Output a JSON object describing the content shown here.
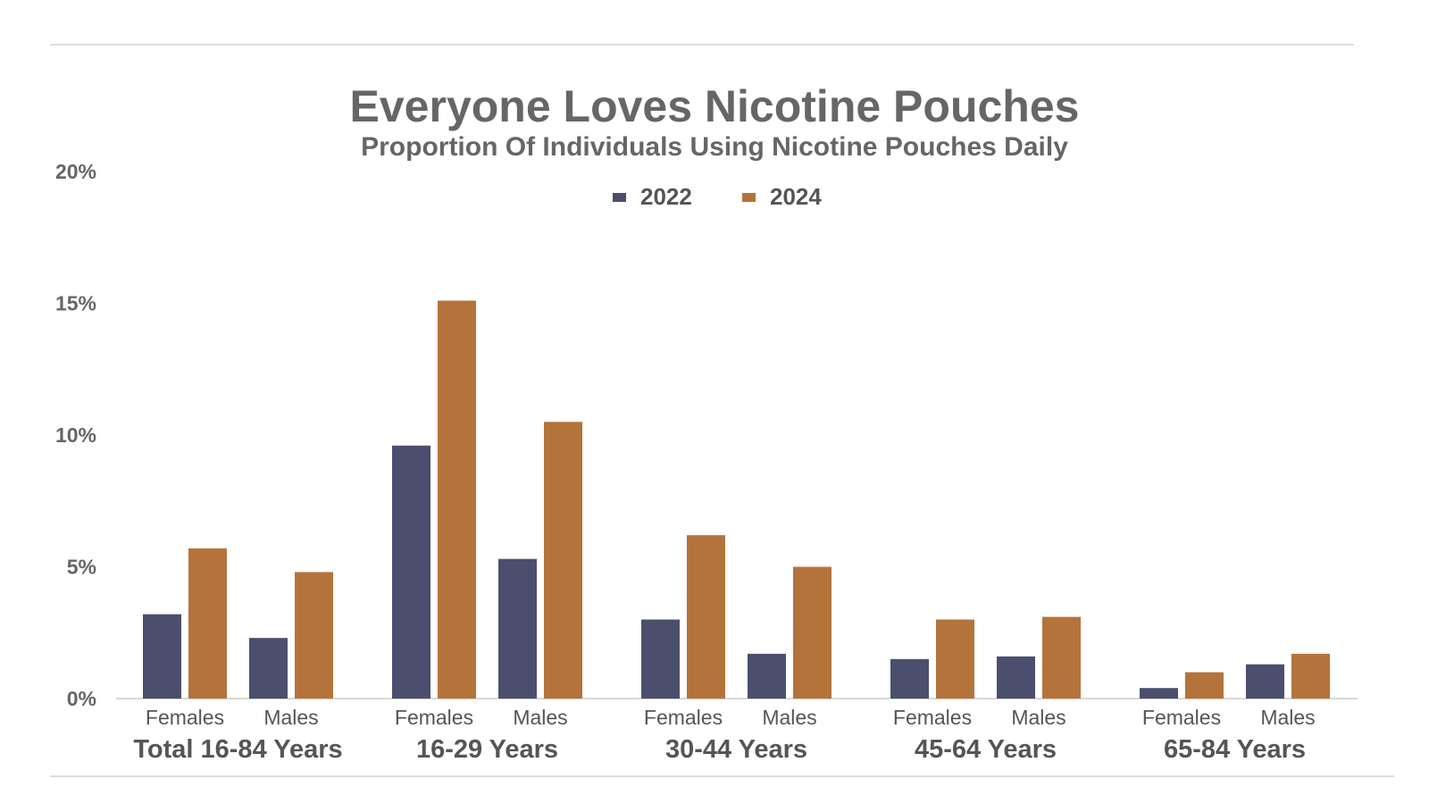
{
  "chart_data": {
    "type": "bar",
    "title": "Everyone Loves Nicotine Pouches",
    "subtitle": "Proportion Of Individuals Using Nicotine Pouches Daily",
    "groups": [
      "Total 16-84 Years",
      "16-29 Years",
      "30-44 Years",
      "45-64 Years",
      "65-84 Years"
    ],
    "subcategories": [
      "Females",
      "Males"
    ],
    "series": [
      {
        "name": "2022",
        "color": "#4b4e6d",
        "values": [
          3.2,
          2.3,
          9.6,
          5.3,
          3.0,
          1.7,
          1.5,
          1.6,
          0.4,
          1.3
        ]
      },
      {
        "name": "2024",
        "color": "#b5733c",
        "values": [
          5.7,
          4.8,
          15.1,
          10.5,
          6.2,
          5.0,
          3.0,
          3.1,
          1.0,
          1.7
        ]
      }
    ],
    "yticks": [
      "0%",
      "5%",
      "10%",
      "15%",
      "20%"
    ],
    "ylim": [
      0,
      20
    ],
    "legend": "top-center",
    "grid": false
  }
}
